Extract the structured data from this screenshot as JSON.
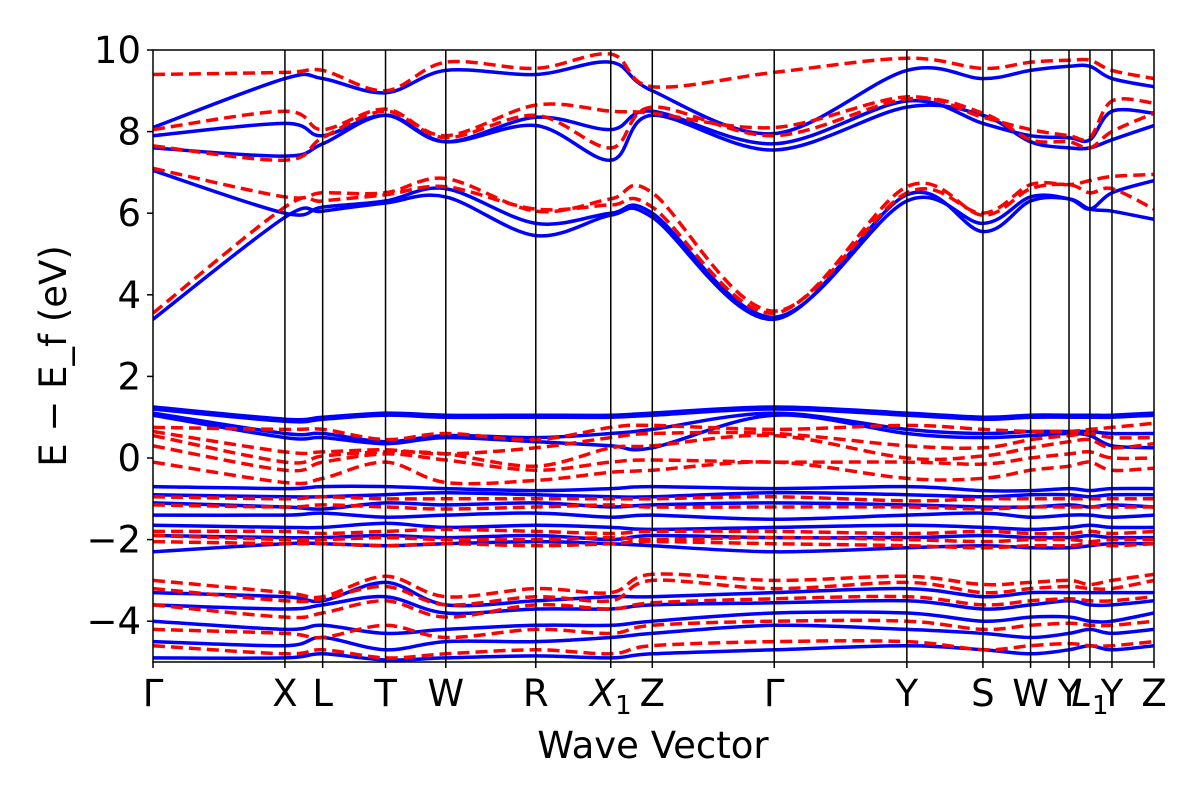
{
  "chart_data": {
    "type": "line",
    "title": "",
    "xlabel": "Wave Vector",
    "ylabel": "E − E_f (eV)",
    "ylim": [
      -5,
      10
    ],
    "yticks": [
      -4,
      -2,
      0,
      2,
      4,
      6,
      8,
      10
    ],
    "ytick_labels": [
      "−4",
      "−2",
      "0",
      "2",
      "4",
      "6",
      "8",
      "10"
    ],
    "grid": false,
    "legend": "none",
    "k_path": [
      {
        "label": "Γ",
        "x": 0.0
      },
      {
        "label": "X",
        "x": 1.318
      },
      {
        "label": "L",
        "x": 1.695
      },
      {
        "label": "T",
        "x": 2.323
      },
      {
        "label": "W",
        "x": 2.925
      },
      {
        "label": "R",
        "x": 3.824
      },
      {
        "label": "X1",
        "x": 4.573
      },
      {
        "label": "Z",
        "x": 4.988
      },
      {
        "label": "Γ",
        "x": 6.206
      },
      {
        "label": "Y",
        "x": 7.531
      },
      {
        "label": "S",
        "x": 8.291
      },
      {
        "label": "W",
        "x": 8.767
      },
      {
        "label": "Y",
        "x": 9.151
      },
      {
        "label": "L1",
        "x": 9.36
      },
      {
        "label": "Y",
        "x": 9.58
      },
      {
        "label": "Z",
        "x": 10.0
      }
    ],
    "series_styles": [
      {
        "key": "blue",
        "color": "#0000ff",
        "dash": "solid"
      },
      {
        "key": "red",
        "color": "#ff0000",
        "dash": "dashed"
      }
    ],
    "series": [
      {
        "key": "blue",
        "values": [
          3.4,
          5.9,
          6.05,
          6.25,
          6.4,
          5.45,
          5.95,
          5.9,
          3.4,
          6.45,
          5.55,
          6.3,
          6.35,
          6.1,
          6.05,
          5.85
        ]
      },
      {
        "key": "blue",
        "values": [
          7.05,
          6.0,
          6.15,
          6.3,
          6.6,
          5.75,
          6.0,
          6.0,
          3.45,
          6.3,
          5.75,
          6.4,
          6.35,
          6.1,
          6.5,
          6.8
        ]
      },
      {
        "key": "blue",
        "values": [
          7.6,
          7.4,
          7.7,
          8.4,
          7.75,
          8.15,
          7.3,
          8.4,
          7.55,
          8.6,
          8.4,
          7.75,
          7.6,
          7.6,
          7.8,
          8.15
        ]
      },
      {
        "key": "blue",
        "values": [
          7.9,
          8.2,
          7.9,
          8.4,
          7.75,
          8.35,
          8.05,
          8.5,
          7.7,
          8.75,
          8.2,
          7.9,
          7.85,
          7.8,
          8.5,
          8.45
        ]
      },
      {
        "key": "blue",
        "values": [
          8.1,
          9.3,
          9.3,
          8.95,
          9.5,
          9.4,
          9.7,
          9.0,
          7.95,
          9.5,
          9.3,
          9.5,
          9.6,
          9.6,
          9.3,
          9.1
        ]
      },
      {
        "key": "blue",
        "values": [
          1.25,
          0.95,
          1.0,
          1.1,
          1.05,
          1.05,
          1.05,
          1.1,
          1.25,
          1.1,
          1.0,
          1.05,
          1.05,
          1.05,
          1.05,
          1.1
        ]
      },
      {
        "key": "blue",
        "values": [
          1.2,
          0.9,
          0.95,
          1.05,
          1.0,
          1.0,
          1.0,
          1.05,
          1.2,
          1.05,
          0.95,
          1.0,
          1.0,
          1.0,
          1.0,
          1.05
        ]
      },
      {
        "key": "blue",
        "values": [
          1.1,
          0.6,
          0.6,
          0.4,
          0.55,
          0.5,
          0.6,
          0.7,
          1.1,
          0.7,
          0.6,
          0.65,
          0.65,
          0.65,
          0.6,
          0.6
        ]
      },
      {
        "key": "blue",
        "values": [
          1.05,
          0.5,
          0.5,
          0.35,
          0.5,
          0.4,
          0.3,
          0.25,
          1.05,
          0.6,
          0.5,
          0.55,
          0.6,
          0.55,
          0.3,
          0.25
        ]
      },
      {
        "key": "blue",
        "values": [
          -0.7,
          -0.75,
          -0.7,
          -0.7,
          -0.75,
          -0.8,
          -0.75,
          -0.7,
          -0.75,
          -0.7,
          -0.8,
          -0.8,
          -0.75,
          -0.8,
          -0.75,
          -0.75
        ]
      },
      {
        "key": "blue",
        "values": [
          -0.9,
          -0.95,
          -0.95,
          -0.9,
          -0.85,
          -0.9,
          -0.95,
          -0.95,
          -0.85,
          -0.9,
          -0.95,
          -0.9,
          -0.9,
          -0.95,
          -0.9,
          -0.9
        ]
      },
      {
        "key": "blue",
        "values": [
          -1.1,
          -1.2,
          -1.25,
          -1.1,
          -1.15,
          -1.1,
          -1.2,
          -1.15,
          -1.1,
          -1.15,
          -1.2,
          -1.2,
          -1.15,
          -1.2,
          -1.15,
          -1.2
        ]
      },
      {
        "key": "blue",
        "values": [
          -1.4,
          -1.4,
          -1.35,
          -1.45,
          -1.4,
          -1.35,
          -1.45,
          -1.4,
          -1.5,
          -1.4,
          -1.35,
          -1.45,
          -1.4,
          -1.4,
          -1.45,
          -1.4
        ]
      },
      {
        "key": "blue",
        "values": [
          -1.65,
          -1.7,
          -1.7,
          -1.6,
          -1.7,
          -1.65,
          -1.7,
          -1.75,
          -1.7,
          -1.65,
          -1.7,
          -1.75,
          -1.7,
          -1.65,
          -1.7,
          -1.7
        ]
      },
      {
        "key": "blue",
        "values": [
          -1.9,
          -1.95,
          -1.95,
          -1.9,
          -1.95,
          -1.9,
          -2.0,
          -1.9,
          -1.95,
          -1.95,
          -1.9,
          -1.95,
          -1.95,
          -1.9,
          -1.95,
          -1.95
        ]
      },
      {
        "key": "blue",
        "values": [
          -2.3,
          -2.1,
          -2.1,
          -2.15,
          -2.1,
          -2.05,
          -2.1,
          -2.15,
          -2.3,
          -2.2,
          -2.15,
          -2.2,
          -2.2,
          -2.15,
          -2.1,
          -2.1
        ]
      },
      {
        "key": "blue",
        "values": [
          -3.3,
          -3.4,
          -3.5,
          -3.05,
          -3.6,
          -3.5,
          -3.4,
          -3.4,
          -3.3,
          -3.2,
          -3.4,
          -3.3,
          -3.3,
          -3.3,
          -3.3,
          -3.3
        ]
      },
      {
        "key": "blue",
        "values": [
          -3.6,
          -3.7,
          -3.6,
          -3.4,
          -3.8,
          -3.7,
          -3.7,
          -3.6,
          -3.55,
          -3.5,
          -3.7,
          -3.6,
          -3.5,
          -3.6,
          -3.6,
          -3.5
        ]
      },
      {
        "key": "blue",
        "values": [
          -4.0,
          -4.2,
          -4.1,
          -4.3,
          -4.2,
          -4.1,
          -4.1,
          -4.0,
          -3.8,
          -3.8,
          -4.0,
          -3.9,
          -3.9,
          -4.0,
          -4.0,
          -3.8
        ]
      },
      {
        "key": "blue",
        "values": [
          -4.5,
          -4.6,
          -4.4,
          -4.7,
          -4.5,
          -4.5,
          -4.4,
          -4.3,
          -4.1,
          -4.2,
          -4.3,
          -4.4,
          -4.3,
          -4.2,
          -4.3,
          -4.2
        ]
      },
      {
        "key": "blue",
        "values": [
          -4.9,
          -4.9,
          -4.8,
          -4.95,
          -4.9,
          -4.85,
          -4.9,
          -4.8,
          -4.7,
          -4.6,
          -4.7,
          -4.8,
          -4.7,
          -4.6,
          -4.7,
          -4.6
        ]
      },
      {
        "key": "red",
        "values": [
          3.55,
          6.15,
          6.3,
          6.45,
          6.65,
          6.1,
          6.2,
          6.15,
          3.55,
          6.65,
          5.95,
          6.6,
          6.7,
          6.5,
          6.6,
          6.1
        ]
      },
      {
        "key": "red",
        "values": [
          7.1,
          6.4,
          6.5,
          6.5,
          6.85,
          6.05,
          6.35,
          6.5,
          3.6,
          6.5,
          6.0,
          6.7,
          6.7,
          6.8,
          6.9,
          6.95
        ]
      },
      {
        "key": "red",
        "values": [
          7.65,
          7.3,
          7.85,
          8.5,
          7.85,
          8.4,
          7.6,
          8.6,
          7.9,
          8.8,
          8.45,
          7.8,
          7.75,
          7.6,
          8.0,
          8.45
        ]
      },
      {
        "key": "red",
        "values": [
          8.05,
          8.5,
          8.05,
          8.55,
          7.9,
          8.65,
          8.5,
          8.45,
          8.1,
          8.85,
          8.35,
          8.05,
          7.9,
          7.85,
          8.75,
          8.7
        ]
      },
      {
        "key": "red",
        "values": [
          9.4,
          9.45,
          9.5,
          9.0,
          9.7,
          9.55,
          9.9,
          9.1,
          9.45,
          9.8,
          9.55,
          9.7,
          9.75,
          9.75,
          9.5,
          9.3
        ]
      },
      {
        "key": "red",
        "values": [
          0.75,
          0.7,
          0.7,
          0.45,
          0.6,
          0.45,
          0.75,
          0.8,
          0.7,
          0.8,
          0.7,
          0.65,
          0.65,
          0.7,
          0.75,
          0.85
        ]
      },
      {
        "key": "red",
        "values": [
          0.65,
          0.15,
          0.15,
          0.2,
          0.1,
          0.25,
          0.5,
          0.6,
          0.6,
          0.3,
          0.25,
          0.45,
          0.55,
          0.6,
          0.5,
          0.5
        ]
      },
      {
        "key": "red",
        "values": [
          0.55,
          -0.1,
          0.05,
          0.15,
          0.1,
          -0.2,
          0.25,
          0.3,
          0.55,
          0.0,
          0.05,
          0.25,
          0.4,
          0.45,
          0.25,
          0.35
        ]
      },
      {
        "key": "red",
        "values": [
          0.3,
          -0.3,
          -0.1,
          0.1,
          -0.05,
          -0.3,
          -0.1,
          -0.05,
          -0.1,
          -0.1,
          -0.15,
          0.0,
          0.1,
          0.15,
          0.0,
          0.0
        ]
      },
      {
        "key": "red",
        "values": [
          -0.1,
          -0.6,
          -0.5,
          -0.1,
          -0.6,
          -0.55,
          -0.35,
          -0.3,
          -0.1,
          -0.5,
          -0.5,
          -0.3,
          -0.2,
          -0.1,
          -0.3,
          -0.25
        ]
      },
      {
        "key": "red",
        "values": [
          -0.95,
          -1.0,
          -0.95,
          -1.0,
          -1.0,
          -1.0,
          -1.0,
          -1.0,
          -0.95,
          -1.05,
          -1.0,
          -1.0,
          -1.0,
          -1.0,
          -1.0,
          -1.0
        ]
      },
      {
        "key": "red",
        "values": [
          -1.15,
          -1.2,
          -1.15,
          -1.2,
          -1.25,
          -1.2,
          -1.15,
          -1.2,
          -1.2,
          -1.2,
          -1.25,
          -1.2,
          -1.2,
          -1.2,
          -1.2,
          -1.2
        ]
      },
      {
        "key": "red",
        "values": [
          -1.8,
          -1.8,
          -1.85,
          -1.8,
          -1.75,
          -1.8,
          -1.85,
          -1.8,
          -1.8,
          -1.85,
          -1.8,
          -1.85,
          -1.85,
          -1.8,
          -1.85,
          -1.8
        ]
      },
      {
        "key": "red",
        "values": [
          -1.9,
          -2.0,
          -2.0,
          -1.95,
          -2.0,
          -2.0,
          -1.95,
          -2.0,
          -1.95,
          -2.0,
          -2.05,
          -2.0,
          -2.0,
          -2.05,
          -2.0,
          -2.0
        ]
      },
      {
        "key": "red",
        "values": [
          -2.05,
          -2.1,
          -2.1,
          -2.15,
          -2.1,
          -2.15,
          -2.1,
          -2.05,
          -2.1,
          -2.15,
          -2.2,
          -2.15,
          -2.15,
          -2.1,
          -2.15,
          -2.1
        ]
      },
      {
        "key": "red",
        "values": [
          -3.0,
          -3.3,
          -3.4,
          -2.9,
          -3.4,
          -3.2,
          -3.3,
          -2.85,
          -3.0,
          -2.9,
          -3.1,
          -3.05,
          -3.0,
          -3.1,
          -3.0,
          -2.85
        ]
      },
      {
        "key": "red",
        "values": [
          -3.2,
          -3.5,
          -3.45,
          -3.15,
          -3.6,
          -3.4,
          -3.5,
          -3.0,
          -3.2,
          -3.05,
          -3.3,
          -3.2,
          -3.15,
          -3.2,
          -3.2,
          -3.0
        ]
      },
      {
        "key": "red",
        "values": [
          -3.6,
          -3.9,
          -3.8,
          -3.5,
          -3.9,
          -3.6,
          -3.7,
          -3.55,
          -3.45,
          -3.4,
          -3.6,
          -3.5,
          -3.45,
          -3.5,
          -3.5,
          -3.4
        ]
      },
      {
        "key": "red",
        "values": [
          -4.2,
          -4.3,
          -4.4,
          -4.1,
          -4.4,
          -4.2,
          -4.3,
          -4.1,
          -4.0,
          -4.0,
          -4.2,
          -4.1,
          -4.05,
          -4.1,
          -4.1,
          -4.0
        ]
      },
      {
        "key": "red",
        "values": [
          -4.6,
          -4.8,
          -4.7,
          -4.9,
          -4.8,
          -4.7,
          -4.8,
          -4.6,
          -4.5,
          -4.5,
          -4.7,
          -4.6,
          -4.55,
          -4.6,
          -4.6,
          -4.5
        ]
      }
    ]
  }
}
